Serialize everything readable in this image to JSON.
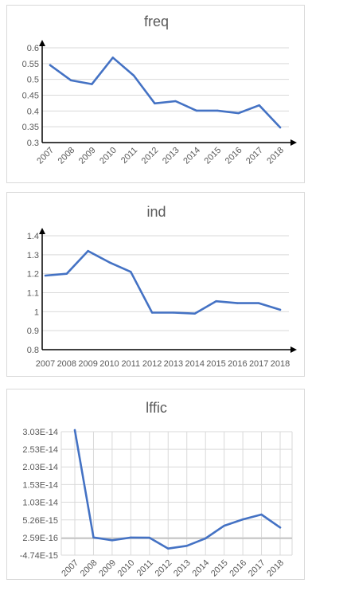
{
  "chart_data": [
    {
      "type": "line",
      "title": "freq",
      "xlabel": "",
      "ylabel": "",
      "categories": [
        "2007",
        "2008",
        "2009",
        "2010",
        "2011",
        "2012",
        "2013",
        "2014",
        "2015",
        "2016",
        "2017",
        "2018"
      ],
      "values": [
        0.545,
        0.497,
        0.485,
        0.569,
        0.512,
        0.424,
        0.431,
        0.401,
        0.401,
        0.393,
        0.418,
        0.348
      ],
      "ylim": [
        0.3,
        0.6
      ],
      "yticks": [
        0.3,
        0.35,
        0.4,
        0.45,
        0.5,
        0.55,
        0.6
      ],
      "ytick_labels": [
        "0.3",
        "0.35",
        "0.4",
        "0.45",
        "0.5",
        "0.55",
        "0.6"
      ],
      "grid": true,
      "xtick_rotation": "rotated",
      "series_color": "#4472c4"
    },
    {
      "type": "line",
      "title": "ind",
      "xlabel": "",
      "ylabel": "",
      "categories": [
        "2007",
        "2008",
        "2009",
        "2010",
        "2011",
        "2012",
        "2013",
        "2014",
        "2015",
        "2016",
        "2017",
        "2018"
      ],
      "values": [
        1.19,
        1.2,
        1.32,
        1.26,
        1.21,
        0.995,
        0.995,
        0.99,
        1.055,
        1.045,
        1.045,
        1.01
      ],
      "ylim": [
        0.8,
        1.4
      ],
      "yticks": [
        0.8,
        0.9,
        1.0,
        1.1,
        1.2,
        1.3,
        1.4
      ],
      "ytick_labels": [
        "0.8",
        "0.9",
        "1",
        "1.1",
        "1.2",
        "1.3",
        "1.4"
      ],
      "grid": true,
      "xtick_rotation": "horizontal",
      "series_color": "#4472c4"
    },
    {
      "type": "line",
      "title": "lffic",
      "xlabel": "",
      "ylabel": "",
      "categories": [
        "2007",
        "2008",
        "2009",
        "2010",
        "2011",
        "2012",
        "2013",
        "2014",
        "2015",
        "2016",
        "2017",
        "2018"
      ],
      "values": [
        3.4e-14,
        2.8e-16,
        -5.2e-16,
        2.6e-16,
        2e-16,
        -2.87e-15,
        -2.1e-15,
        1e-17,
        3.6e-15,
        5.4e-15,
        6.8e-15,
        3.1e-15
      ],
      "ylim": [
        -4.74e-15,
        3.03e-14
      ],
      "yticks": [
        -4.74e-15,
        2.59e-16,
        5.26e-15,
        1.03e-14,
        1.53e-14,
        2.03e-14,
        2.53e-14,
        3.03e-14
      ],
      "ytick_labels": [
        "-4.74E-15",
        "2.59E-16",
        "5.26E-15",
        "1.03E-14",
        "1.53E-14",
        "2.03E-14",
        "2.53E-14",
        "3.03E-14"
      ],
      "grid": true,
      "vertical_grid": true,
      "baseline_value": 0,
      "xtick_rotation": "rotated",
      "series_color": "#4472c4"
    }
  ]
}
